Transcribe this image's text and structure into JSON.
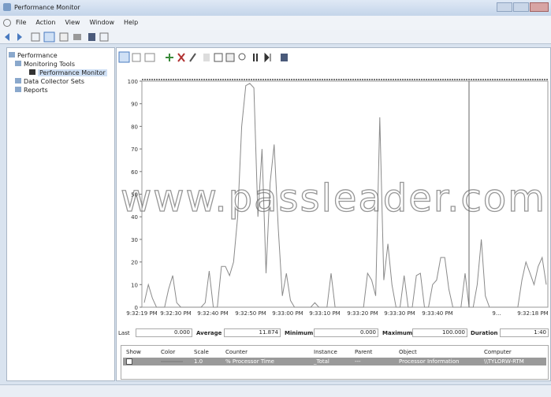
{
  "window": {
    "title": "Performance Monitor",
    "menu": [
      "File",
      "Action",
      "View",
      "Window",
      "Help"
    ]
  },
  "tree": {
    "items": [
      "Performance",
      "Monitoring Tools",
      "Performance Monitor",
      "Data Collector Sets",
      "Reports"
    ]
  },
  "graph": {
    "type": "line",
    "ylim": [
      0,
      100
    ],
    "yticks": [
      0,
      10,
      20,
      30,
      40,
      50,
      60,
      70,
      80,
      90,
      100
    ],
    "xlabels": [
      "9:32:19 PM",
      "9:32:30 PM",
      "9:32:40 PM",
      "9:32:50 PM",
      "9:33:00 PM",
      "9:33:10 PM",
      "9:33:20 PM",
      "9:33:30 PM",
      "9:33:40 PM",
      "9...",
      "9:32:18 PM"
    ],
    "color": "#8a8a8a",
    "values": [
      2,
      10,
      4,
      0,
      0,
      0,
      8,
      14,
      2,
      0,
      0,
      0,
      0,
      0,
      0,
      2,
      16,
      0,
      0,
      18,
      18,
      14,
      20,
      40,
      80,
      98,
      99,
      97,
      40,
      70,
      15,
      55,
      72,
      35,
      5,
      15,
      3,
      0,
      0,
      0,
      0,
      0,
      2,
      0,
      0,
      0,
      15,
      0,
      0,
      0,
      0,
      0,
      0,
      0,
      0,
      15,
      12,
      5,
      84,
      12,
      28,
      10,
      0,
      0,
      14,
      0,
      0,
      14,
      15,
      0,
      0,
      10,
      12,
      22,
      22,
      8,
      0,
      0,
      0,
      15,
      0,
      0,
      10,
      30,
      5,
      0,
      0,
      0,
      0,
      0,
      0,
      0,
      0,
      12,
      20,
      15,
      10,
      18,
      22,
      10
    ]
  },
  "stats": {
    "last_label": "Last",
    "last": "0.000",
    "average_label": "Average",
    "average": "11.874",
    "minimum_label": "Minimum",
    "minimum": "0.000",
    "maximum_label": "Maximum",
    "maximum": "100.000",
    "duration_label": "Duration",
    "duration": "1:40"
  },
  "counters": {
    "headers": [
      "Show",
      "Color",
      "Scale",
      "Counter",
      "Instance",
      "Parent",
      "Object",
      "Computer"
    ],
    "rows": [
      [
        "1.0",
        "% Processor Time",
        "_Total",
        "---",
        "Processor Information",
        "\\\\TYLORW-RTM"
      ]
    ]
  },
  "watermark": "www.passleader.com"
}
